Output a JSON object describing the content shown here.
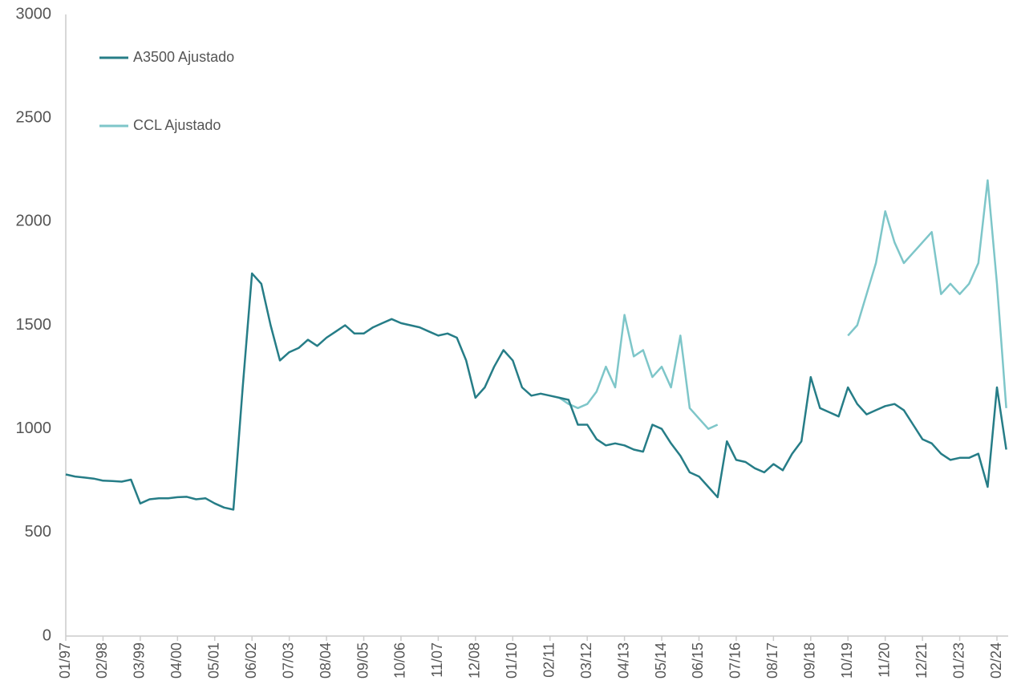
{
  "chart_data": {
    "type": "line",
    "categories": [
      "01/97",
      null,
      null,
      null,
      "02/98",
      null,
      null,
      null,
      "03/99",
      null,
      null,
      null,
      "04/00",
      null,
      null,
      null,
      "05/01",
      null,
      null,
      null,
      "06/02",
      null,
      null,
      null,
      "07/03",
      null,
      null,
      null,
      "08/04",
      null,
      null,
      null,
      "09/05",
      null,
      null,
      null,
      "10/06",
      null,
      null,
      null,
      "11/07",
      null,
      null,
      null,
      "12/08",
      null,
      null,
      null,
      "01/10",
      null,
      null,
      null,
      "02/11",
      null,
      null,
      null,
      "03/12",
      null,
      null,
      null,
      "04/13",
      null,
      null,
      null,
      "05/14",
      null,
      null,
      null,
      "06/15",
      null,
      null,
      null,
      "07/16",
      null,
      null,
      null,
      "08/17",
      null,
      null,
      null,
      "09/18",
      null,
      null,
      null,
      "10/19",
      null,
      null,
      null,
      "11/20",
      null,
      null,
      null,
      "12/21",
      null,
      null,
      null,
      "01/23",
      null,
      null,
      null,
      "02/24",
      null
    ],
    "series": [
      {
        "name": "A3500 Ajustado",
        "color": "#267d87",
        "values": [
          780,
          770,
          765,
          760,
          750,
          748,
          745,
          755,
          640,
          660,
          665,
          665,
          670,
          672,
          660,
          665,
          640,
          620,
          610,
          1200,
          1750,
          1700,
          1500,
          1330,
          1370,
          1390,
          1430,
          1400,
          1440,
          1470,
          1500,
          1460,
          1460,
          1490,
          1510,
          1530,
          1510,
          1500,
          1490,
          1470,
          1450,
          1460,
          1440,
          1330,
          1150,
          1200,
          1300,
          1380,
          1330,
          1200,
          1160,
          1170,
          1160,
          1150,
          1140,
          1020,
          1020,
          950,
          920,
          930,
          920,
          900,
          890,
          1020,
          1000,
          930,
          870,
          790,
          770,
          720,
          670,
          940,
          850,
          840,
          810,
          790,
          830,
          800,
          880,
          940,
          1250,
          1100,
          1080,
          1060,
          1200,
          1120,
          1070,
          1090,
          1110,
          1120,
          1090,
          1020,
          950,
          930,
          880,
          850,
          860,
          860,
          880,
          720,
          1200,
          900
        ]
      },
      {
        "name": "CCL Ajustado",
        "color": "#7ec6c9",
        "values": [
          null,
          null,
          null,
          null,
          null,
          null,
          null,
          null,
          null,
          null,
          null,
          null,
          null,
          null,
          null,
          null,
          null,
          null,
          null,
          null,
          null,
          null,
          null,
          null,
          null,
          null,
          null,
          null,
          null,
          null,
          null,
          null,
          null,
          null,
          null,
          null,
          null,
          null,
          null,
          null,
          null,
          null,
          null,
          null,
          null,
          null,
          null,
          null,
          null,
          null,
          null,
          null,
          null,
          1150,
          1120,
          1100,
          1120,
          1180,
          1300,
          1200,
          1550,
          1350,
          1380,
          1250,
          1300,
          1200,
          1450,
          1100,
          1050,
          1000,
          1020,
          null,
          null,
          null,
          null,
          null,
          null,
          null,
          null,
          null,
          null,
          null,
          null,
          null,
          1450,
          1500,
          1650,
          1800,
          2050,
          1900,
          1800,
          1850,
          1900,
          1950,
          1650,
          1700,
          1650,
          1700,
          1800,
          2200,
          1700,
          1100
        ]
      }
    ],
    "ylim": [
      0,
      3000
    ],
    "yticks": [
      0,
      500,
      1000,
      1500,
      2000,
      2500,
      3000
    ],
    "grid": false,
    "legend": "upper left"
  }
}
